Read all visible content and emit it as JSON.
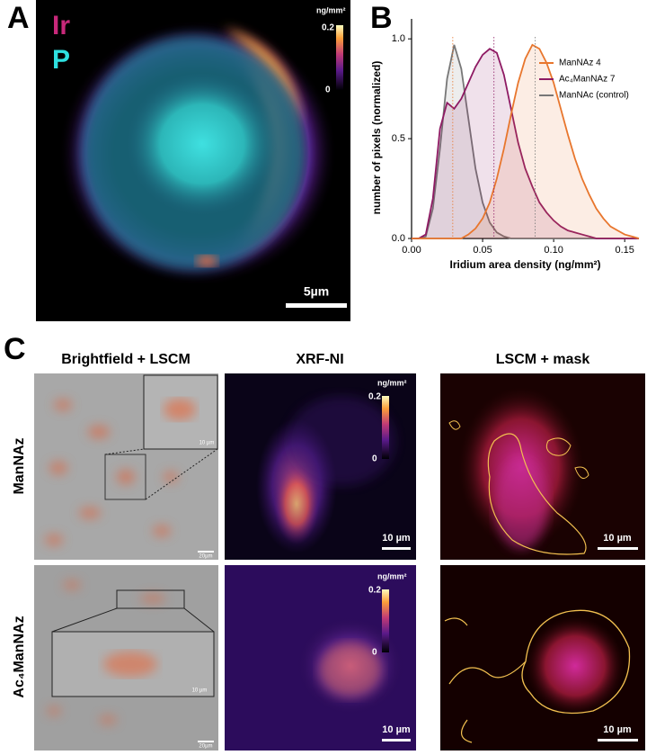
{
  "panels": {
    "A": {
      "label": "A",
      "channel_ir": "Ir",
      "channel_p": "P",
      "colorbar_unit": "ng/mm²",
      "colorbar_max": "0.2",
      "colorbar_min": "0",
      "scale_bar": "5µm"
    },
    "B": {
      "label": "B"
    },
    "C": {
      "label": "C",
      "columns": [
        "Brightfield + LSCM",
        "XRF-NI",
        "LSCM + mask"
      ],
      "rows": [
        {
          "label": "ManNAz",
          "scale_bar_brightfield": "20µm",
          "inset_scale_bar": "10 µm",
          "scale_bar_xrf": "10 µm",
          "scale_bar_mask": "10 µm",
          "colorbar_unit": "ng/mm²",
          "colorbar_max": "0.2",
          "colorbar_min": "0"
        },
        {
          "label": "Ac₄ManNAz",
          "scale_bar_brightfield": "20µm",
          "inset_scale_bar": "10 µm",
          "scale_bar_xrf": "10 µm",
          "scale_bar_mask": "10 µm",
          "colorbar_unit": "ng/mm²",
          "colorbar_max": "0.2",
          "colorbar_min": "0"
        }
      ]
    }
  },
  "chart_data": {
    "type": "line",
    "x_label": "Iridium area density (ng/mm²)",
    "y_label": "number of pixels (normalized)",
    "x": [
      0,
      0.005,
      0.01,
      0.015,
      0.02,
      0.025,
      0.03,
      0.035,
      0.04,
      0.045,
      0.05,
      0.055,
      0.06,
      0.065,
      0.07,
      0.075,
      0.08,
      0.085,
      0.09,
      0.095,
      0.1,
      0.105,
      0.11,
      0.115,
      0.12,
      0.125,
      0.13,
      0.135,
      0.14,
      0.145,
      0.15,
      0.155,
      0.16
    ],
    "series": [
      {
        "name": "ManNAz 4",
        "color": "#e8762d",
        "values": [
          0,
          0,
          0,
          0,
          0,
          0,
          0,
          0,
          0.02,
          0.05,
          0.1,
          0.18,
          0.3,
          0.45,
          0.62,
          0.78,
          0.9,
          0.97,
          0.95,
          0.88,
          0.78,
          0.65,
          0.52,
          0.4,
          0.3,
          0.22,
          0.15,
          0.1,
          0.06,
          0.04,
          0.02,
          0.01,
          0
        ]
      },
      {
        "name": "Ac₄ManNAz 7",
        "color": "#8e1a63",
        "values": [
          0,
          0,
          0.02,
          0.2,
          0.55,
          0.68,
          0.65,
          0.7,
          0.78,
          0.86,
          0.92,
          0.95,
          0.93,
          0.82,
          0.65,
          0.48,
          0.35,
          0.26,
          0.18,
          0.13,
          0.09,
          0.06,
          0.04,
          0.03,
          0.02,
          0.01,
          0,
          0,
          0,
          0,
          0,
          0,
          0
        ]
      },
      {
        "name": "ManNAc (control)",
        "color": "#777777",
        "values": [
          0,
          0,
          0.01,
          0.15,
          0.45,
          0.8,
          0.97,
          0.85,
          0.6,
          0.35,
          0.18,
          0.08,
          0.03,
          0.01,
          0,
          0,
          0,
          0,
          0,
          0,
          0,
          0,
          0,
          0,
          0,
          0,
          0,
          0,
          0,
          0,
          0,
          0,
          0
        ]
      }
    ],
    "peak_lines": [
      0.029,
      0.058,
      0.087
    ],
    "xlim": [
      0,
      0.16
    ],
    "xticks": [
      {
        "value": 0,
        "label": "0.00"
      },
      {
        "value": 0.05,
        "label": "0.05"
      },
      {
        "value": 0.1,
        "label": "0.10"
      },
      {
        "value": 0.15,
        "label": "0.15"
      }
    ],
    "ylim": [
      0,
      1.1
    ],
    "yticks": [
      {
        "value": 0,
        "label": "0.0"
      },
      {
        "value": 0.5,
        "label": "0.5"
      },
      {
        "value": 1,
        "label": "1.0"
      }
    ],
    "legend": "upper-right"
  }
}
